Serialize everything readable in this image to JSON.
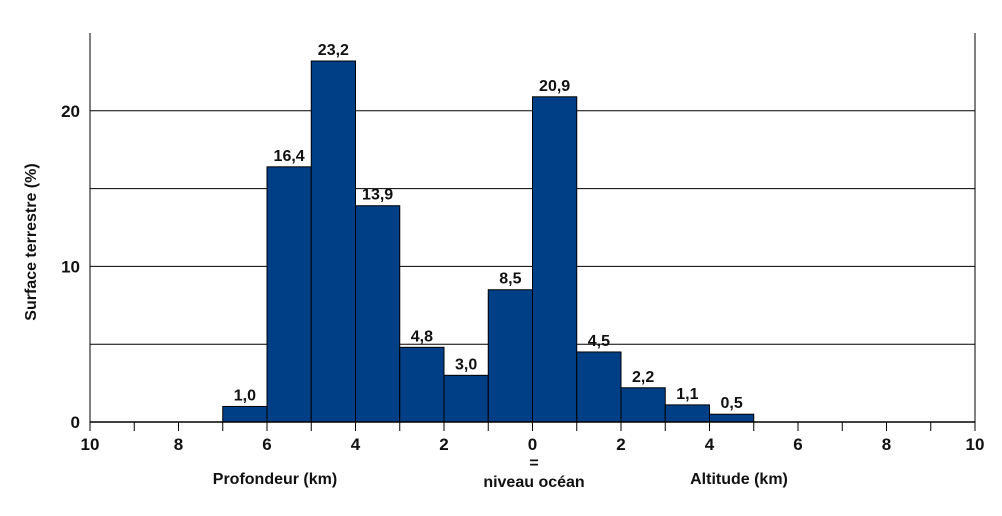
{
  "chart_data": {
    "type": "bar",
    "ylabel": "Surface terrestre (%)",
    "xlim": [
      -10,
      10
    ],
    "ylim": [
      0,
      25
    ],
    "ygrid_step": 5,
    "yticks": [
      0,
      10,
      20
    ],
    "xticks": [
      "10",
      "8",
      "6",
      "4",
      "2",
      "0",
      "2",
      "4",
      "6",
      "8",
      "10"
    ],
    "x_axis_labels": {
      "depth": "Profondeur (km)",
      "zero_sign": "=",
      "zero": "niveau océan",
      "altitude": "Altitude (km)"
    },
    "bars": [
      {
        "from": -7,
        "to": -6,
        "value": 1.0,
        "label": "1,0"
      },
      {
        "from": -6,
        "to": -5,
        "value": 16.4,
        "label": "16,4"
      },
      {
        "from": -5,
        "to": -4,
        "value": 23.2,
        "label": "23,2"
      },
      {
        "from": -4,
        "to": -3,
        "value": 13.9,
        "label": "13,9"
      },
      {
        "from": -3,
        "to": -2,
        "value": 4.8,
        "label": "4,8"
      },
      {
        "from": -2,
        "to": -1,
        "value": 3.0,
        "label": "3,0"
      },
      {
        "from": -1,
        "to": 0,
        "value": 8.5,
        "label": "8,5"
      },
      {
        "from": 0,
        "to": 1,
        "value": 20.9,
        "label": "20,9"
      },
      {
        "from": 1,
        "to": 2,
        "value": 4.5,
        "label": "4,5"
      },
      {
        "from": 2,
        "to": 3,
        "value": 2.2,
        "label": "2,2"
      },
      {
        "from": 3,
        "to": 4,
        "value": 1.1,
        "label": "1,1"
      },
      {
        "from": 4,
        "to": 5,
        "value": 0.5,
        "label": "0,5"
      }
    ],
    "colors": {
      "bar": "#003f86",
      "bar_edge": "#000000",
      "grid": "#000000"
    },
    "grid": true
  }
}
